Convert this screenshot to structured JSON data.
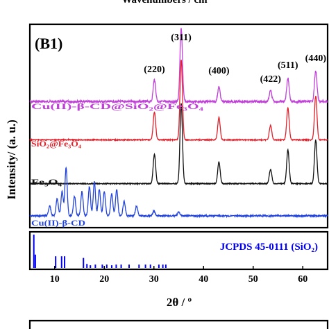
{
  "header": {
    "cut_label": "Wavenumbers / cm"
  },
  "chart_data": {
    "type": "line",
    "panel_label": "(B1)",
    "xlabel": "2θ / º",
    "ylabel": "Intensity/ (a. u.)",
    "xlim": [
      5,
      65
    ],
    "xticks": [
      10,
      20,
      30,
      40,
      50,
      60
    ],
    "peak_labels": [
      {
        "text": "(220)",
        "x": 30.1
      },
      {
        "text": "(311)",
        "x": 35.5
      },
      {
        "text": "(400)",
        "x": 43.1
      },
      {
        "text": "(422)",
        "x": 53.5
      },
      {
        "text": "(511)",
        "x": 57.0
      },
      {
        "text": "(440)",
        "x": 62.6
      }
    ],
    "series": [
      {
        "name": "Cu(II)-β-CD@SiO₂@Fe₃O₄",
        "color": "#c040d8",
        "baseline": 0.13,
        "peaks": [
          [
            30.1,
            0.3
          ],
          [
            35.5,
            1.0
          ],
          [
            43.1,
            0.2
          ],
          [
            53.5,
            0.15
          ],
          [
            57.0,
            0.32
          ],
          [
            62.6,
            0.42
          ]
        ]
      },
      {
        "name": "SiO₂@Fe₃O₄",
        "color": "#e0202a",
        "baseline": 0.1,
        "peaks": [
          [
            30.1,
            0.35
          ],
          [
            35.5,
            1.0
          ],
          [
            43.1,
            0.28
          ],
          [
            53.5,
            0.18
          ],
          [
            57.0,
            0.4
          ],
          [
            62.6,
            0.55
          ]
        ]
      },
      {
        "name": "Fe₃O₄",
        "color": "#101010",
        "baseline": 0.03,
        "peaks": [
          [
            30.1,
            0.37
          ],
          [
            35.5,
            1.0
          ],
          [
            43.1,
            0.27
          ],
          [
            53.5,
            0.18
          ],
          [
            57.0,
            0.42
          ],
          [
            62.6,
            0.55
          ]
        ]
      },
      {
        "name": "Cu(II)-β-CD",
        "color": "#2244dd",
        "baseline": 0.0,
        "peaks": [
          [
            9.0,
            0.2
          ],
          [
            10.5,
            0.35
          ],
          [
            11.5,
            0.5
          ],
          [
            12.3,
            1.0
          ],
          [
            14.0,
            0.4
          ],
          [
            15.5,
            0.5
          ],
          [
            17.0,
            0.6
          ],
          [
            18.0,
            0.7
          ],
          [
            19.0,
            0.55
          ],
          [
            20.0,
            0.5
          ],
          [
            21.5,
            0.45
          ],
          [
            22.5,
            0.55
          ],
          [
            24.0,
            0.3
          ],
          [
            26.5,
            0.2
          ],
          [
            30.0,
            0.1
          ],
          [
            35.0,
            0.08
          ]
        ]
      }
    ],
    "reference": {
      "label": "JCPDS 45-0111 (SiO₂)",
      "color": "#0000ee",
      "lines": [
        [
          5.8,
          1.0
        ],
        [
          6.1,
          0.4
        ],
        [
          10.2,
          0.35
        ],
        [
          11.4,
          0.35
        ],
        [
          12.0,
          0.35
        ],
        [
          15.8,
          0.3
        ],
        [
          16.5,
          0.12
        ],
        [
          17.2,
          0.08
        ],
        [
          18.2,
          0.1
        ],
        [
          19.6,
          0.1
        ],
        [
          20.5,
          0.1
        ],
        [
          21.5,
          0.08
        ],
        [
          22.4,
          0.1
        ],
        [
          23.4,
          0.1
        ],
        [
          25.0,
          0.1
        ],
        [
          27.0,
          0.1
        ],
        [
          28.3,
          0.1
        ],
        [
          29.3,
          0.1
        ],
        [
          31.0,
          0.1
        ],
        [
          31.8,
          0.1
        ],
        [
          32.4,
          0.1
        ]
      ]
    }
  }
}
